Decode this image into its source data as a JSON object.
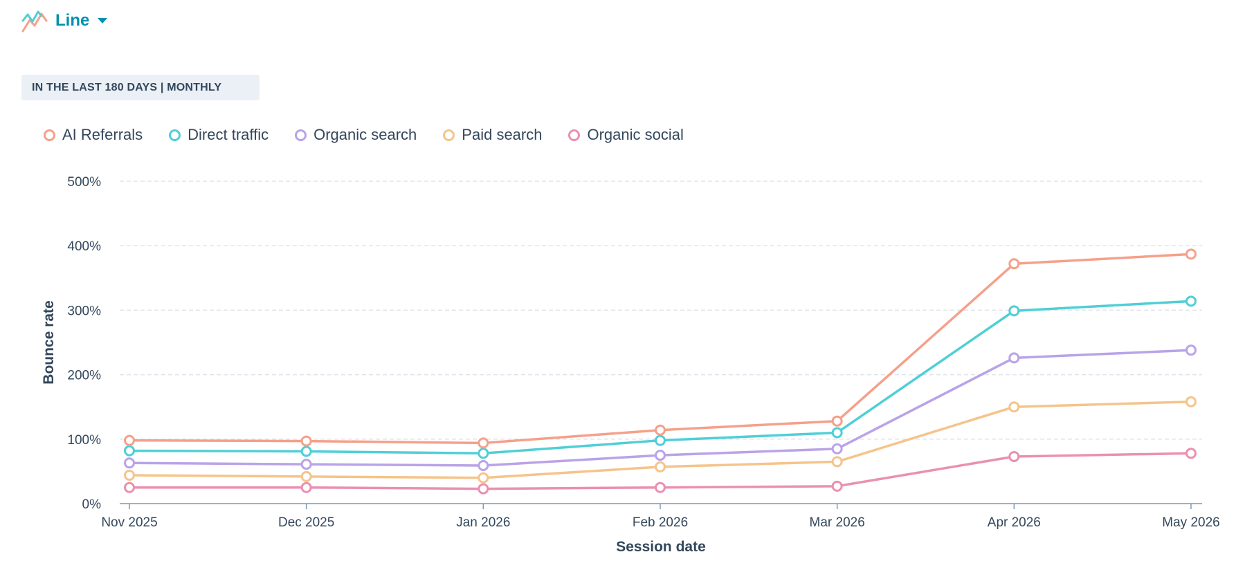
{
  "header": {
    "chart_type_label": "Line",
    "icon": "line-chart-icon",
    "dropdown_icon": "caret-down-icon"
  },
  "range_badge": "IN THE LAST 180 DAYS | MONTHLY",
  "colors": {
    "accent": "#0091ae",
    "grid": "#dfe3eb",
    "axis": "#7c98b6",
    "text": "#33475b"
  },
  "chart_data": {
    "type": "line",
    "title": "",
    "xlabel": "Session date",
    "ylabel": "Bounce rate",
    "categories": [
      "Nov 2025",
      "Dec 2025",
      "Jan 2026",
      "Feb 2026",
      "Mar 2026",
      "Apr 2026",
      "May 2026"
    ],
    "ylim": [
      0,
      500
    ],
    "yticks": [
      0,
      100,
      200,
      300,
      400,
      500
    ],
    "ytick_labels": [
      "0%",
      "100%",
      "200%",
      "300%",
      "400%",
      "500%"
    ],
    "grid": true,
    "legend_position": "top-left",
    "series": [
      {
        "name": "AI Referrals",
        "color": "#f5a08a",
        "values": [
          98,
          97,
          94,
          114,
          128,
          372,
          387
        ]
      },
      {
        "name": "Direct traffic",
        "color": "#4fcfd6",
        "values": [
          82,
          81,
          78,
          98,
          110,
          299,
          314
        ]
      },
      {
        "name": "Organic search",
        "color": "#b9a3e8",
        "values": [
          63,
          61,
          59,
          75,
          85,
          226,
          238
        ]
      },
      {
        "name": "Paid search",
        "color": "#f5c48a",
        "values": [
          44,
          42,
          40,
          57,
          65,
          150,
          158
        ]
      },
      {
        "name": "Organic social",
        "color": "#ea90b1",
        "values": [
          25,
          25,
          23,
          25,
          27,
          73,
          78
        ]
      }
    ]
  }
}
